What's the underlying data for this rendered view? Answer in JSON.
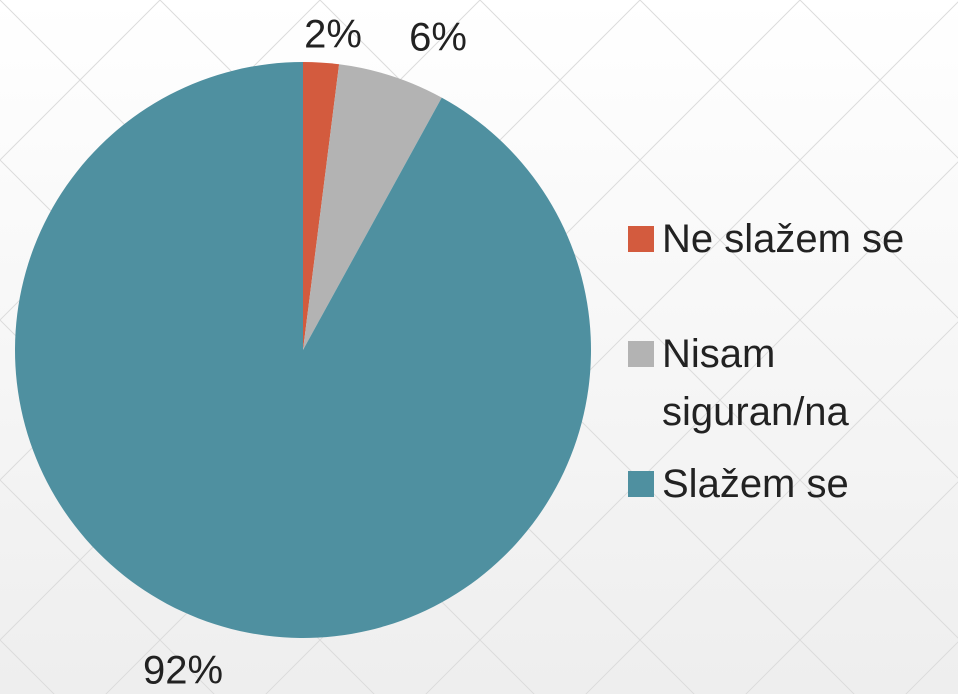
{
  "chart_data": {
    "type": "pie",
    "categories": [
      "Ne slažem se",
      "Nisam siguran/na",
      "Slažem se"
    ],
    "values": [
      2,
      6,
      92
    ],
    "value_labels": [
      "2%",
      "6%",
      "92%"
    ],
    "colors": [
      "#d35b3e",
      "#b3b3b3",
      "#4f90a0"
    ],
    "legend": "right"
  }
}
